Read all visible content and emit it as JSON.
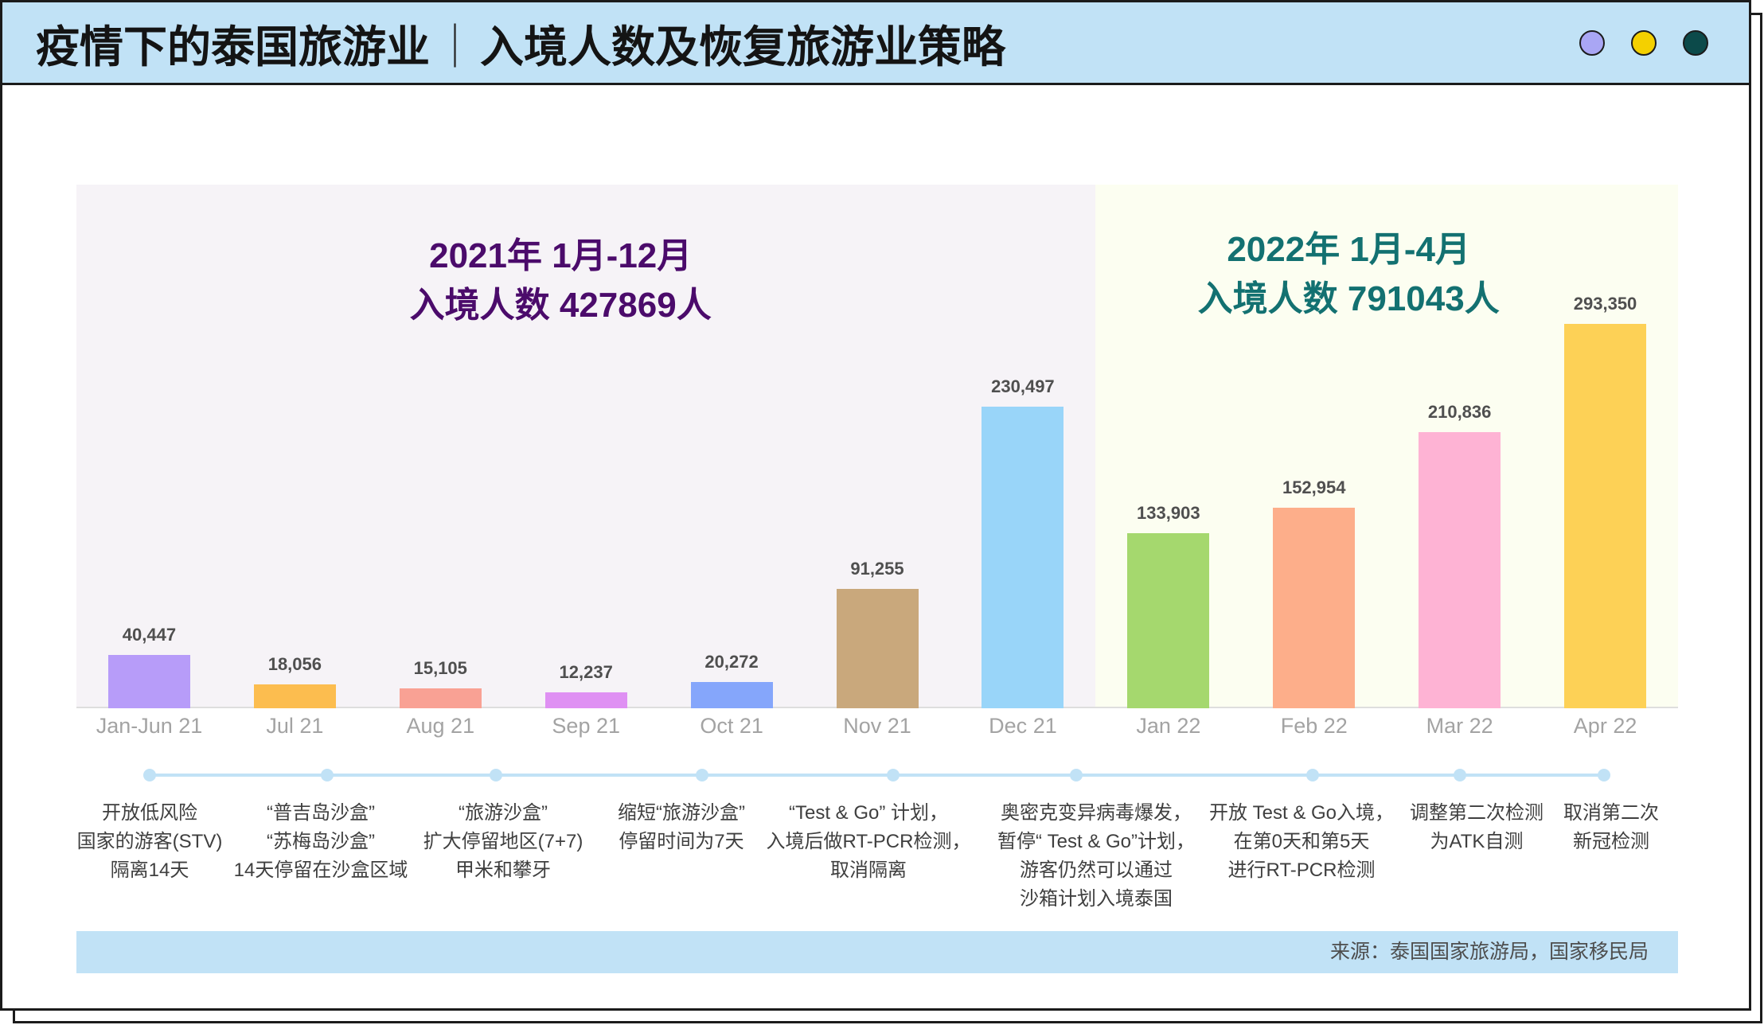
{
  "header": {
    "title_main": "疫情下的泰国旅游业",
    "title_separator": "｜",
    "title_sub": "入境人数及恢复旅游业策略",
    "window_dots": [
      {
        "icon": "lavender-circle-icon",
        "color": "#a9a6f4"
      },
      {
        "icon": "yellow-circle-icon",
        "color": "#f4d000"
      },
      {
        "icon": "teal-circle-icon",
        "color": "#0c4a4a"
      }
    ]
  },
  "chart_data": {
    "type": "bar",
    "categories": [
      "Jan-Jun 21",
      "Jul 21",
      "Aug 21",
      "Sep 21",
      "Oct 21",
      "Nov 21",
      "Dec 21",
      "Jan 22",
      "Feb 22",
      "Mar 22",
      "Apr 22"
    ],
    "values": [
      40447,
      18056,
      15105,
      12237,
      20272,
      91255,
      230497,
      133903,
      152954,
      210836,
      293350
    ],
    "data_labels": [
      "40,447",
      "18,056",
      "15,105",
      "12,237",
      "20,272",
      "91,255",
      "230,497",
      "133,903",
      "152,954",
      "210,836",
      "293,350"
    ],
    "colors": [
      "#b79cf9",
      "#fcbd4f",
      "#f9a194",
      "#df90f3",
      "#85a6fb",
      "#c9a87c",
      "#99d5f9",
      "#a5d86e",
      "#fdae8a",
      "#feb3d4",
      "#fdd156"
    ],
    "ylim": [
      0,
      400000
    ],
    "grid": false,
    "panels": [
      {
        "heading": "2021年 1月-12月",
        "subheading": "入境人数 427869人",
        "color": "#4b0b6b"
      },
      {
        "heading": "2022年 1月-4月",
        "subheading": "入境人数 791043人",
        "color": "#137171"
      }
    ]
  },
  "timeline": {
    "events": [
      {
        "lines": [
          "开放低风险",
          "国家的游客(STV)",
          "隔离14天"
        ]
      },
      {
        "lines": [
          "“普吉岛沙盒”",
          "“苏梅岛沙盒”",
          "14天停留在沙盒区域"
        ]
      },
      {
        "lines": [
          "“旅游沙盒”",
          "扩大停留地区(7+7)",
          "甲米和攀牙"
        ]
      },
      {
        "lines": [
          "缩短“旅游沙盒”",
          "停留时间为7天"
        ]
      },
      {
        "lines": [
          "“Test & Go” 计划，",
          "入境后做RT-PCR检测，",
          "取消隔离"
        ]
      },
      {
        "lines": [
          "奥密克变异病毒爆发，",
          "暂停“ Test & Go”计划，",
          "游客仍然可以通过",
          "沙箱计划入境泰国"
        ]
      },
      {
        "lines": [
          "开放 Test & Go入境，",
          "在第0天和第5天",
          "进行RT-PCR检测"
        ]
      },
      {
        "lines": [
          "调整第二次检测",
          "为ATK自测"
        ]
      },
      {
        "lines": [
          "取消第二次",
          "新冠检测"
        ]
      }
    ]
  },
  "source": "来源：泰国国家旅游局，国家移民局"
}
